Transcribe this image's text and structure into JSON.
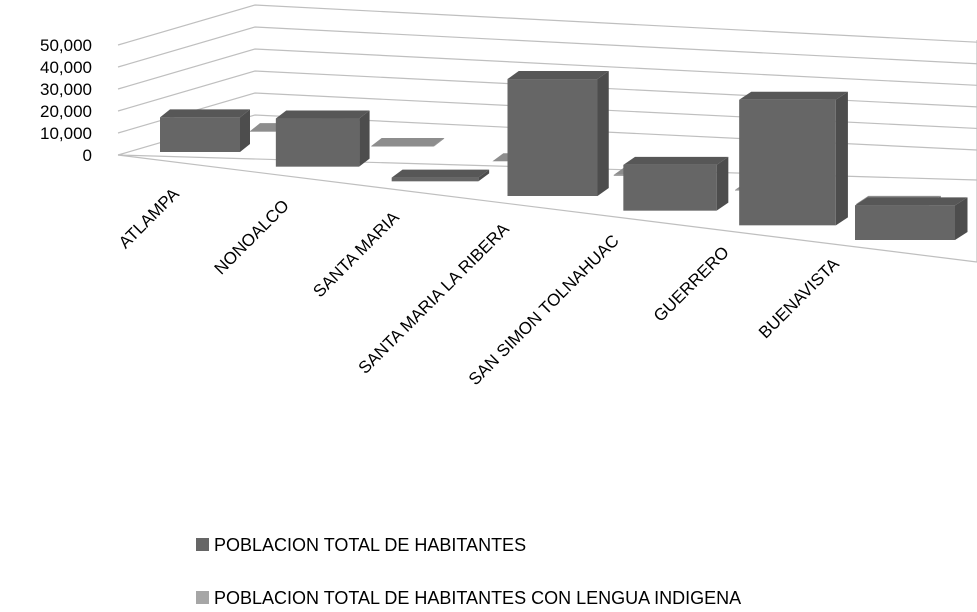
{
  "chart_data": {
    "type": "bar3d",
    "categories": [
      "ATLAMPA",
      "NONOALCO",
      "SANTA MARIA",
      "SANTA MARIA LA RIBERA",
      "SAN SIMON TOLNAHUAC",
      "GUERRERO",
      "BUENAVISTA"
    ],
    "series": [
      {
        "name": "POBLACION TOTAL DE HABITANTES",
        "color": "#666666",
        "values": [
          15000,
          20000,
          1500,
          45000,
          17000,
          45000,
          12000
        ]
      },
      {
        "name": "POBLACION TOTAL DE HABITANTES CON LENGUA INDIGENA",
        "color": "#a6a6a6",
        "values": [
          400,
          300,
          50,
          500,
          300,
          600,
          1500
        ]
      }
    ],
    "ylim": [
      0,
      50000
    ],
    "yticks": [
      0,
      {
        "value": 10000,
        "label": "10,000"
      },
      {
        "value": 20000,
        "label": "20,000"
      },
      {
        "value": 30000,
        "label": "30,000"
      },
      {
        "value": 40000,
        "label": "40,000"
      },
      {
        "value": 50000,
        "label": "50,000"
      }
    ],
    "grid": true
  }
}
